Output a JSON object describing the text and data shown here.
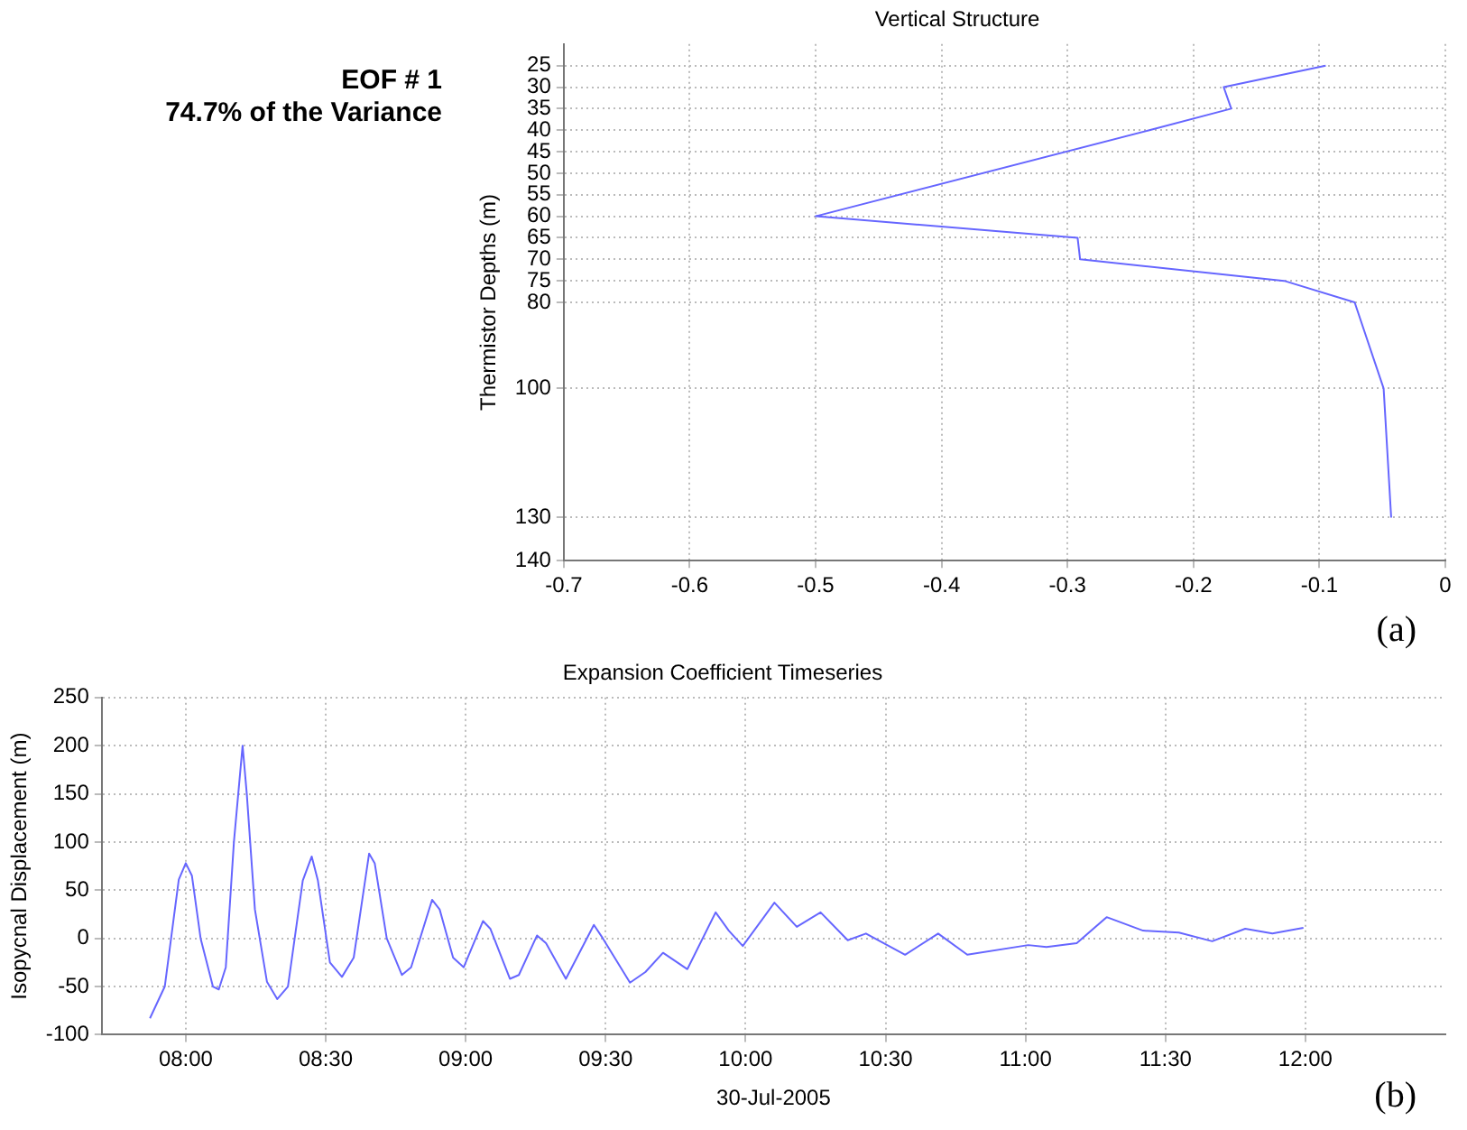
{
  "chart_data": [
    {
      "type": "line",
      "title": "Vertical Structure",
      "ylabel": "Thermistor Depths (m)",
      "annotations": [
        "EOF # 1",
        "74.7% of the Variance",
        "(a)"
      ],
      "series": [
        {
          "color": "#6666ff",
          "x": [
            -0.095,
            -0.176,
            -0.17,
            -0.235,
            -0.5,
            -0.292,
            -0.29,
            -0.128,
            -0.072,
            -0.049,
            -0.043
          ],
          "values": [
            25,
            30,
            35,
            40,
            60,
            65,
            70,
            75,
            80,
            100,
            130
          ]
        }
      ],
      "xlim": [
        -0.7,
        0
      ],
      "xticks": [
        -0.7,
        -0.6,
        -0.5,
        -0.4,
        -0.3,
        -0.2,
        -0.1,
        0
      ],
      "ylim": [
        140,
        20
      ],
      "yticks": [
        25,
        30,
        35,
        40,
        45,
        50,
        55,
        60,
        65,
        70,
        75,
        80,
        100,
        130,
        140
      ],
      "grid": true,
      "line_style": "solid",
      "legend": false
    },
    {
      "type": "line",
      "title": "Expansion Coefficient Timeseries",
      "xlabel": "30-Jul-2005",
      "ylabel": "Isopycnal Displacement (m)",
      "annotations": [
        "(b)"
      ],
      "series": [
        {
          "color": "#6666ff",
          "x": [
            7.872,
            7.925,
            7.975,
            8.0,
            8.022,
            8.053,
            8.097,
            8.118,
            8.143,
            8.172,
            8.203,
            8.218,
            8.247,
            8.29,
            8.327,
            8.365,
            8.418,
            8.45,
            8.472,
            8.515,
            8.558,
            8.6,
            8.655,
            8.675,
            8.718,
            8.772,
            8.805,
            8.88,
            8.907,
            8.955,
            8.993,
            9.062,
            9.088,
            9.158,
            9.19,
            9.255,
            9.287,
            9.358,
            9.458,
            9.49,
            9.587,
            9.642,
            9.705,
            9.792,
            9.893,
            9.94,
            9.99,
            10.103,
            10.183,
            10.268,
            10.365,
            10.43,
            10.57,
            10.688,
            10.792,
            11.01,
            11.075,
            11.183,
            11.29,
            11.42,
            11.548,
            11.667,
            11.785,
            11.882,
            11.993
          ],
          "values": [
            -83,
            -50,
            61,
            78,
            65,
            0,
            -50,
            -53,
            -30,
            100,
            200,
            150,
            30,
            -45,
            -63,
            -50,
            60,
            85,
            60,
            -25,
            -40,
            -20,
            88,
            78,
            0,
            -38,
            -30,
            40,
            30,
            -20,
            -30,
            18,
            10,
            -42,
            -38,
            3,
            -5,
            -42,
            14,
            0,
            -46,
            -35,
            -15,
            -32,
            27,
            8,
            -8,
            37,
            12,
            27,
            -2,
            5,
            -17,
            5,
            -17,
            -7,
            -9,
            -5,
            22,
            8,
            6,
            -3,
            10,
            5,
            11
          ]
        }
      ],
      "xlim": [
        7.7,
        12.5
      ],
      "xticks": [
        {
          "value": 8,
          "label": "08:00"
        },
        {
          "value": 8.5,
          "label": "08:30"
        },
        {
          "value": 9,
          "label": "09:00"
        },
        {
          "value": 9.5,
          "label": "09:30"
        },
        {
          "value": 10,
          "label": "10:00"
        },
        {
          "value": 10.5,
          "label": "10:30"
        },
        {
          "value": 11,
          "label": "11:00"
        },
        {
          "value": 11.5,
          "label": "11:30"
        },
        {
          "value": 12,
          "label": "12:00"
        }
      ],
      "ylim": [
        -100,
        250
      ],
      "yticks": [
        -100,
        -50,
        0,
        50,
        100,
        150,
        200,
        250
      ],
      "grid": true,
      "line_style": "solid",
      "legend": false
    }
  ]
}
